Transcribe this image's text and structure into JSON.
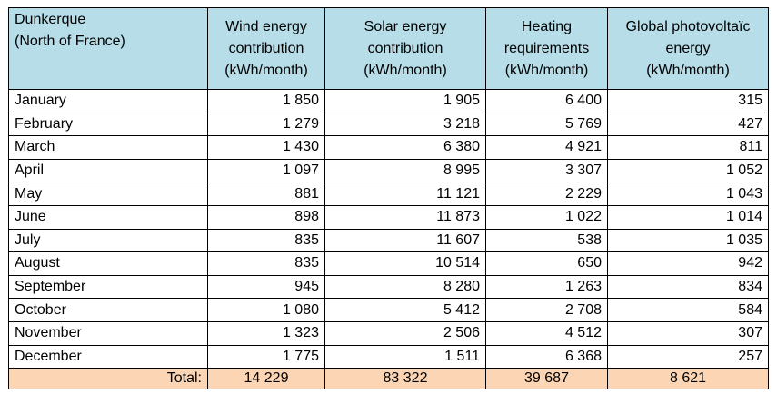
{
  "header": {
    "location": [
      "Dunkerque",
      "(North of France)"
    ],
    "columns": [
      [
        "Wind energy",
        "contribution",
        "(kWh/month)"
      ],
      [
        "Solar energy",
        "contribution",
        "(kWh/month)"
      ],
      [
        "Heating",
        "requirements",
        "(kWh/month)"
      ],
      [
        "Global photovoltaïc",
        "energy",
        "(kWh/month)"
      ]
    ]
  },
  "rows": [
    {
      "month": "January",
      "wind": "1 850",
      "solar": "1 905",
      "heating": "6 400",
      "pv": "315"
    },
    {
      "month": "February",
      "wind": "1 279",
      "solar": "3 218",
      "heating": "5 769",
      "pv": "427"
    },
    {
      "month": "March",
      "wind": "1 430",
      "solar": "6 380",
      "heating": "4 921",
      "pv": "811"
    },
    {
      "month": "April",
      "wind": "1 097",
      "solar": "8 995",
      "heating": "3 307",
      "pv": "1 052"
    },
    {
      "month": "May",
      "wind": "881",
      "solar": "11 121",
      "heating": "2 229",
      "pv": "1 043"
    },
    {
      "month": "June",
      "wind": "898",
      "solar": "11 873",
      "heating": "1 022",
      "pv": "1 014"
    },
    {
      "month": "July",
      "wind": "835",
      "solar": "11 607",
      "heating": "538",
      "pv": "1 035"
    },
    {
      "month": "August",
      "wind": "835",
      "solar": "10 514",
      "heating": "650",
      "pv": "942"
    },
    {
      "month": "September",
      "wind": "945",
      "solar": "8 280",
      "heating": "1 263",
      "pv": "834"
    },
    {
      "month": "October",
      "wind": "1 080",
      "solar": "5 412",
      "heating": "2 708",
      "pv": "584"
    },
    {
      "month": "November",
      "wind": "1 323",
      "solar": "2 506",
      "heating": "4 512",
      "pv": "307"
    },
    {
      "month": "December",
      "wind": "1 775",
      "solar": "1 511",
      "heating": "6 368",
      "pv": "257"
    }
  ],
  "total": {
    "label": "Total:",
    "wind": "14 229",
    "solar": "83 322",
    "heating": "39 687",
    "pv": "8 621"
  },
  "colors": {
    "header_bg": "#b7dde8",
    "total_bg": "#fcd5b4"
  }
}
